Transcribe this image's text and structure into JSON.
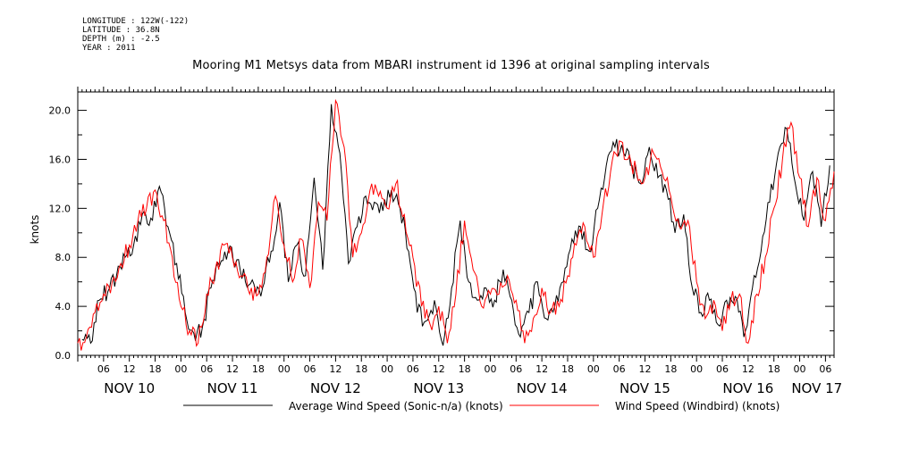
{
  "meta": {
    "longitude": "LONGITUDE : 122W(-122)",
    "latitude": "LATITUDE : 36.8N",
    "depth": "DEPTH (m) : -2.5",
    "year": "YEAR : 2011"
  },
  "chart_data": {
    "type": "line",
    "title": "Mooring M1 Metsys data from MBARI instrument id 1396 at original sampling intervals",
    "ylabel": "knots",
    "xlabel": "",
    "ylim": [
      0,
      21.5
    ],
    "yticks": [
      "0.0",
      "4.0",
      "8.0",
      "12.0",
      "16.0",
      "20.0"
    ],
    "ytick_values": [
      0,
      4,
      8,
      12,
      16,
      20
    ],
    "xlim_hours": [
      0,
      176
    ],
    "hour_ticks": [
      "06",
      "12",
      "18",
      "00",
      "06",
      "12",
      "18",
      "00",
      "06",
      "12",
      "18",
      "00",
      "06",
      "12",
      "18",
      "00",
      "06",
      "12",
      "18",
      "00",
      "06",
      "12",
      "18",
      "00",
      "06",
      "12",
      "18",
      "00",
      "06"
    ],
    "day_labels": [
      "NOV 10",
      "NOV 11",
      "NOV 12",
      "NOV 13",
      "NOV 14",
      "NOV 15",
      "NOV 16",
      "NOV 17"
    ],
    "grid": false,
    "legend_position": "bottom",
    "series": [
      {
        "name": "Average Wind Speed (Sonic-n/a) (knots)",
        "color": "#000000",
        "x_hours": [
          1,
          3,
          5,
          7,
          9,
          11,
          13,
          15,
          17,
          19,
          21,
          23,
          25,
          27,
          29,
          31,
          33,
          35,
          37,
          39,
          41,
          43,
          45,
          47,
          49,
          51,
          53,
          55,
          57,
          59,
          61,
          63,
          65,
          67,
          69,
          71,
          73,
          75,
          77,
          79,
          81,
          83,
          85,
          87,
          89,
          91,
          93,
          95,
          97,
          99,
          101,
          103,
          105,
          107,
          109,
          111,
          113,
          115,
          117,
          119,
          121,
          123,
          125,
          127,
          129,
          131,
          133,
          135,
          137,
          139,
          141,
          143,
          145,
          147,
          149,
          151,
          153,
          155,
          157,
          159,
          161,
          163,
          165,
          167,
          169,
          171,
          173,
          175
        ],
        "values": [
          1.3,
          1.0,
          4.5,
          5.2,
          6.5,
          8.0,
          9.0,
          11.5,
          11.2,
          13.8,
          10.5,
          7.5,
          3.5,
          1.8,
          2.3,
          5.5,
          7.3,
          8.5,
          7.8,
          6.0,
          5.8,
          5.5,
          8.5,
          12.5,
          6.0,
          9.0,
          6.5,
          14.5,
          7.0,
          20.5,
          16.5,
          7.5,
          10.5,
          13.0,
          12.5,
          11.8,
          13.5,
          12.0,
          8.5,
          3.5,
          2.8,
          4.5,
          0.8,
          5.5,
          11.0,
          6.0,
          4.5,
          5.5,
          4.5,
          7.0,
          4.5,
          1.5,
          3.5,
          6.0,
          3.0,
          4.0,
          6.0,
          9.5,
          10.5,
          8.5,
          12.0,
          15.5,
          17.0,
          16.5,
          15.5,
          14.0,
          17.0,
          14.5,
          13.5,
          10.0,
          11.5,
          5.5,
          3.5,
          4.5,
          2.5,
          4.5,
          4.8,
          1.5,
          5.5,
          8.5,
          12.5,
          16.5,
          18.5,
          14.0,
          11.0,
          15.0,
          10.5,
          15.5
        ]
      },
      {
        "name": "Wind Speed (Windbird) (knots)",
        "color": "#ff0000",
        "x_hours": [
          0,
          2,
          4,
          6,
          8,
          10,
          12,
          14,
          16,
          18,
          20,
          22,
          24,
          26,
          28,
          30,
          32,
          34,
          36,
          38,
          40,
          42,
          44,
          46,
          48,
          50,
          52,
          54,
          56,
          58,
          60,
          62,
          64,
          66,
          68,
          70,
          72,
          74,
          76,
          78,
          80,
          82,
          84,
          86,
          88,
          90,
          92,
          94,
          96,
          98,
          100,
          102,
          104,
          106,
          108,
          110,
          112,
          114,
          116,
          118,
          120,
          122,
          124,
          126,
          128,
          130,
          132,
          134,
          136,
          138,
          140,
          142,
          144,
          146,
          148,
          150,
          152,
          154,
          156,
          158,
          160,
          162,
          164,
          166,
          168,
          170,
          172,
          174,
          176
        ],
        "values": [
          1.0,
          1.5,
          3.5,
          5.0,
          6.0,
          7.5,
          9.0,
          11.0,
          12.0,
          13.5,
          11.0,
          8.0,
          4.0,
          2.0,
          1.0,
          5.0,
          7.0,
          9.0,
          8.0,
          6.5,
          5.0,
          5.0,
          8.0,
          13.0,
          9.0,
          6.0,
          9.5,
          5.5,
          12.5,
          11.0,
          20.8,
          17.0,
          8.0,
          10.0,
          13.5,
          13.0,
          12.0,
          14.0,
          11.5,
          8.0,
          4.0,
          2.5,
          4.0,
          1.0,
          5.0,
          11.0,
          7.0,
          4.0,
          5.0,
          5.0,
          6.5,
          4.5,
          1.0,
          3.0,
          5.5,
          3.5,
          4.0,
          6.5,
          9.0,
          10.5,
          8.0,
          11.5,
          15.0,
          17.5,
          16.0,
          15.0,
          14.5,
          16.5,
          15.0,
          13.0,
          10.5,
          11.0,
          6.0,
          3.0,
          4.5,
          2.0,
          4.5,
          5.0,
          1.0,
          5.0,
          8.0,
          12.0,
          16.0,
          19.0,
          14.5,
          10.5,
          14.5,
          11.0,
          15.0
        ]
      }
    ]
  }
}
